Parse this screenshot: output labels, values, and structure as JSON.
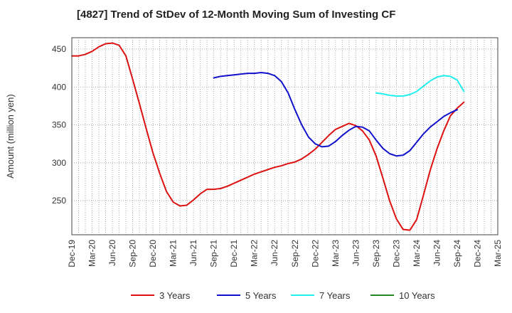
{
  "chart_data": {
    "type": "line",
    "title": "[4827]  Trend of StDev of 12-Month Moving Sum of Investing CF",
    "ylabel": "Amount (million yen)",
    "xlabel": "",
    "ylim": [
      205,
      465
    ],
    "yticks": [
      250,
      300,
      350,
      400,
      450
    ],
    "x_tick_labels": [
      "Dec-19",
      "Mar-20",
      "Jun-20",
      "Sep-20",
      "Dec-20",
      "Mar-21",
      "Jun-21",
      "Sep-21",
      "Dec-21",
      "Mar-22",
      "Jun-22",
      "Sep-22",
      "Dec-22",
      "Mar-23",
      "Jun-23",
      "Sep-23",
      "Dec-23",
      "Mar-24",
      "Jun-24",
      "Sep-24",
      "Dec-24",
      "Mar-25"
    ],
    "grid": true,
    "legend_position": "bottom",
    "series": [
      {
        "name": "3 Years",
        "color": "#dd1111",
        "x_start_index": 0,
        "values": [
          441,
          441,
          443,
          447,
          453,
          457,
          458,
          455,
          441,
          410,
          378,
          345,
          313,
          286,
          262,
          248,
          243,
          244,
          251,
          259,
          265,
          265,
          266,
          269,
          273,
          277,
          281,
          285,
          288,
          291,
          294,
          296,
          299,
          301,
          305,
          311,
          318,
          327,
          336,
          344,
          348,
          352,
          349,
          342,
          330,
          309,
          280,
          250,
          226,
          212,
          211,
          225,
          257,
          290,
          318,
          342,
          362,
          372,
          380
        ]
      },
      {
        "name": "5 Years",
        "color": "#1111cc",
        "x_start_index": 21,
        "values": [
          412,
          414,
          415,
          416,
          417,
          418,
          418,
          419,
          418,
          415,
          407,
          392,
          370,
          350,
          334,
          325,
          321,
          322,
          328,
          336,
          343,
          348,
          347,
          342,
          330,
          319,
          312,
          309,
          310,
          316,
          327,
          338,
          347,
          354,
          361,
          366,
          370
        ]
      },
      {
        "name": "7 Years",
        "color": "#22eeee",
        "x_start_index": 45,
        "values": [
          392,
          391,
          389,
          388,
          388,
          390,
          394,
          401,
          408,
          413,
          415,
          414,
          409,
          394
        ]
      },
      {
        "name": "10 Years",
        "color": "#228822",
        "x_start_index": 0,
        "values": []
      }
    ]
  }
}
